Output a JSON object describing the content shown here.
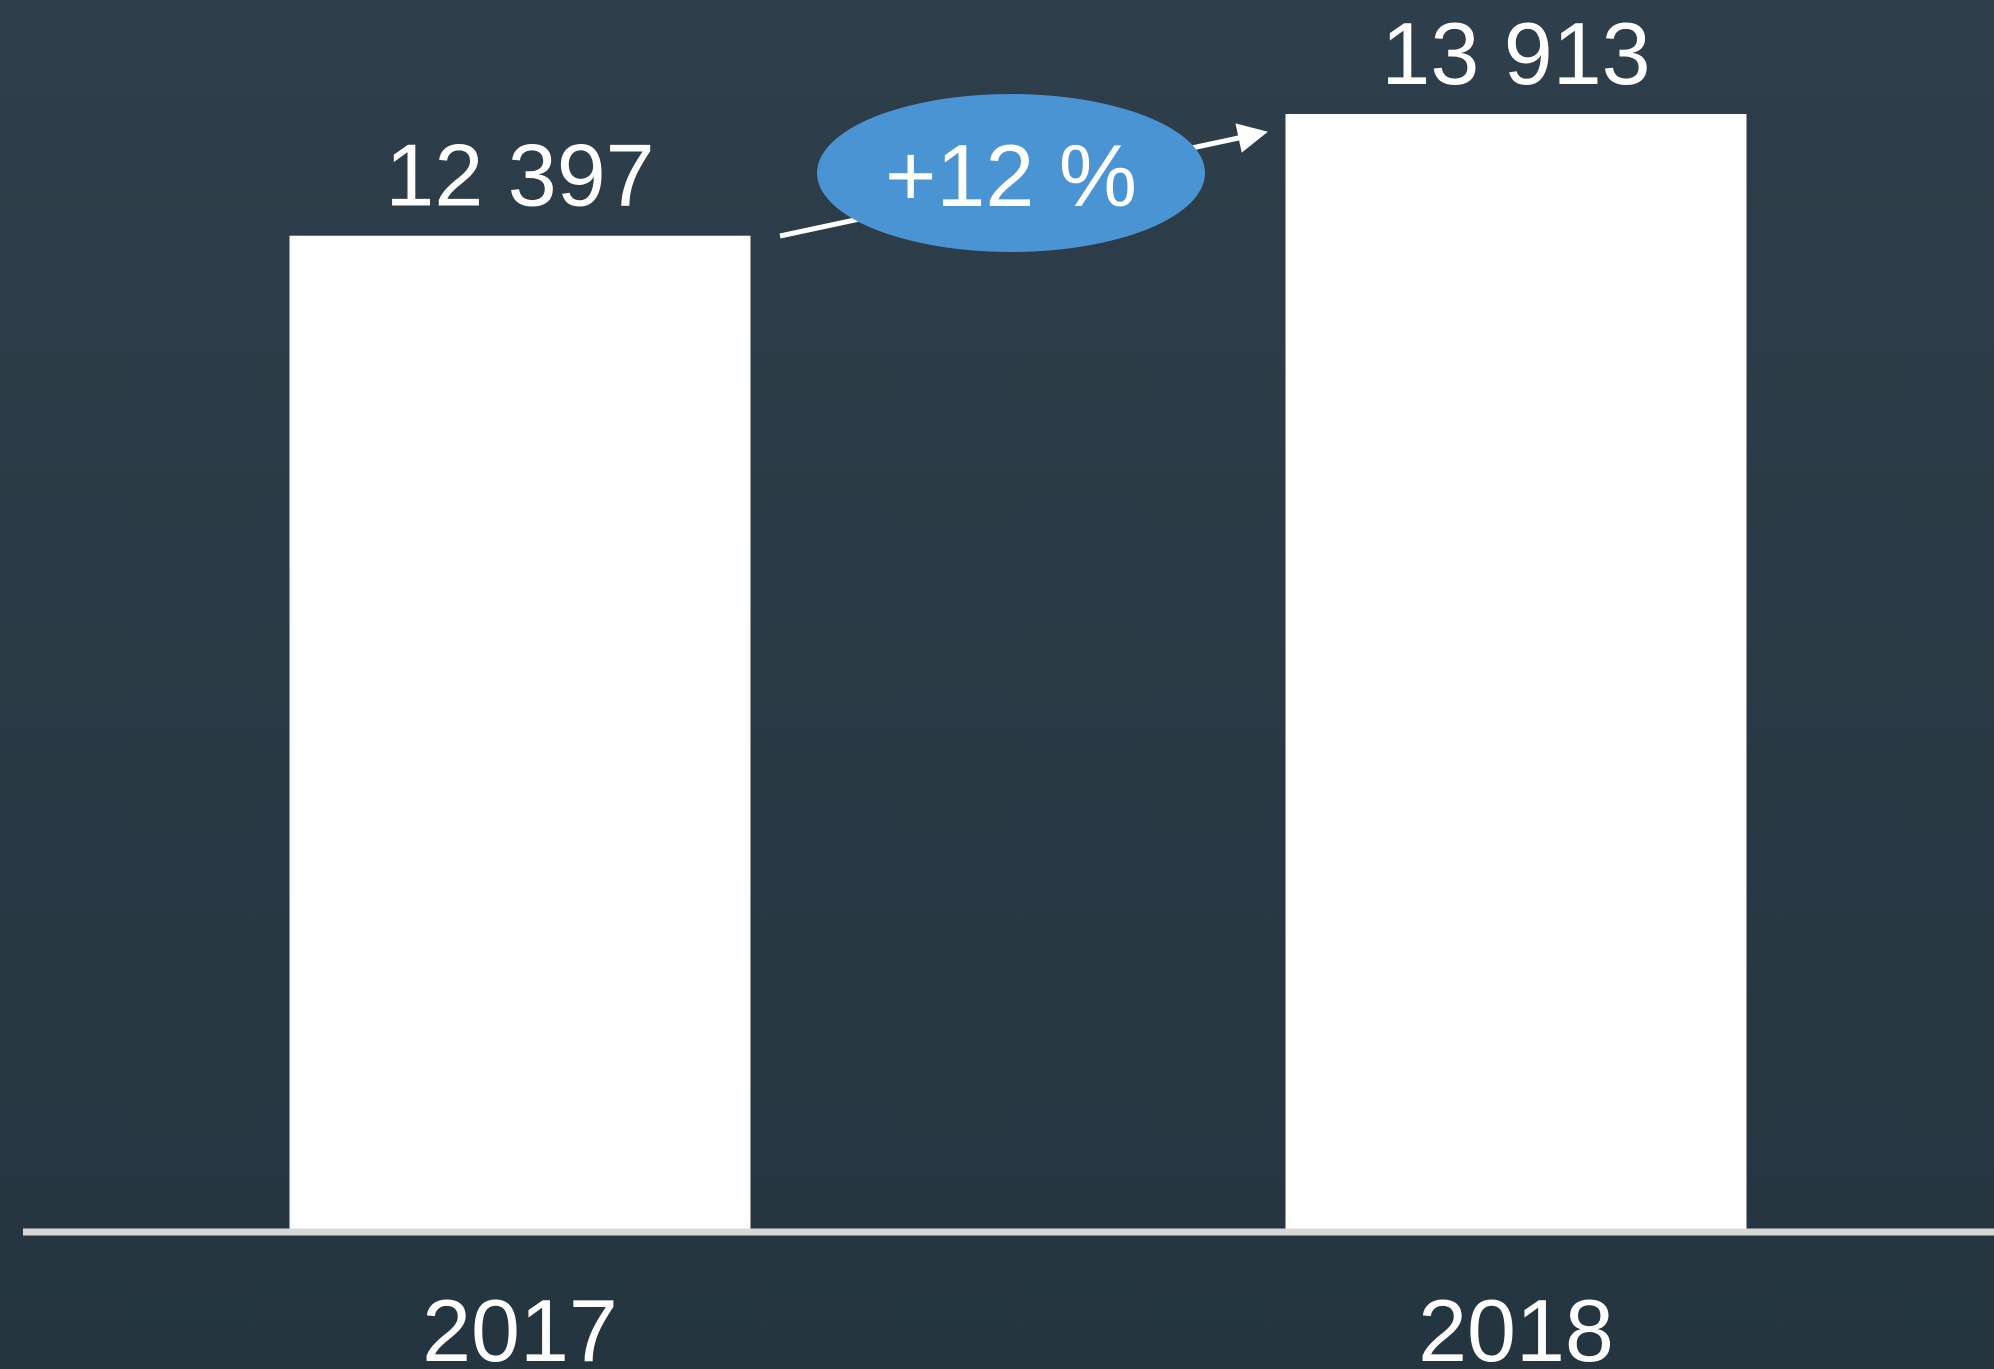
{
  "chart_data": {
    "type": "bar",
    "categories": [
      "2017",
      "2018"
    ],
    "values": [
      12397,
      13913
    ],
    "value_labels": [
      "12 397",
      "13 913"
    ],
    "color": "#ffffff",
    "annotation": "+12 %"
  }
}
